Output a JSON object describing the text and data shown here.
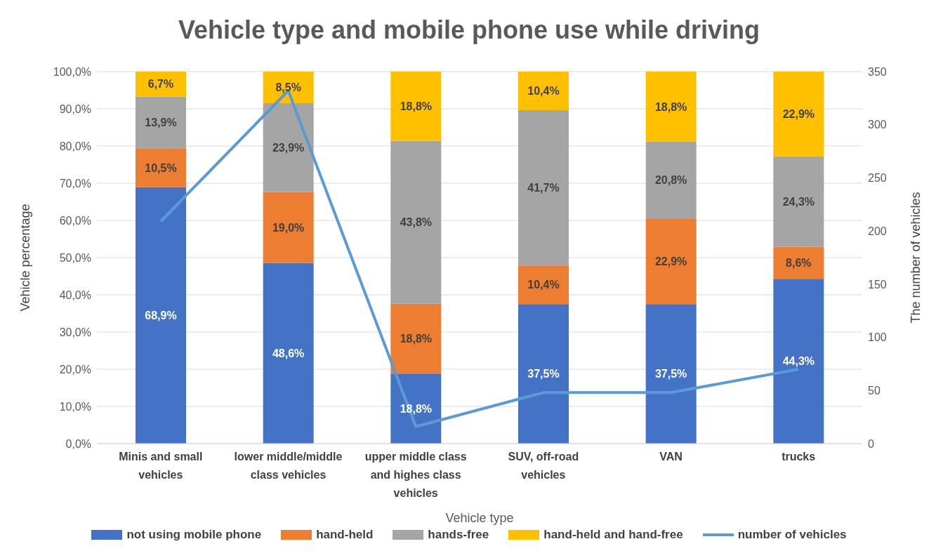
{
  "chart_data": {
    "type": "bar",
    "title": "Vehicle type and mobile phone use while driving",
    "xlabel": "Vehicle type",
    "ylabel": "Vehicle percentage",
    "y2label": "The number of vehicles",
    "categories": [
      "Minis and small vehicles",
      "lower middle/middle class vehicles",
      "upper middle class and highes class vehicles",
      "SUV, off-road vehicles",
      "VAN",
      "trucks"
    ],
    "stacked": true,
    "series": [
      {
        "name": "not using mobile phone",
        "color": "#4472c4",
        "values": [
          68.9,
          48.6,
          18.8,
          37.5,
          37.5,
          44.3
        ],
        "value_labels": [
          "68,9%",
          "48,6%",
          "18,8%",
          "37,5%",
          "37,5%",
          "44,3%"
        ]
      },
      {
        "name": "hand-held",
        "color": "#ed7d31",
        "values": [
          10.5,
          19.0,
          18.8,
          10.4,
          22.9,
          8.6
        ],
        "value_labels": [
          "10,5%",
          "19,0%",
          "18,8%",
          "10,4%",
          "22,9%",
          "8,6%"
        ]
      },
      {
        "name": "hands-free",
        "color": "#a5a5a5",
        "values": [
          13.9,
          23.9,
          43.8,
          41.7,
          20.8,
          24.3
        ],
        "value_labels": [
          "13,9%",
          "23,9%",
          "43,8%",
          "41,7%",
          "20,8%",
          "24,3%"
        ]
      },
      {
        "name": "hand-held and hand-free",
        "color": "#ffc000",
        "values": [
          6.7,
          8.5,
          18.8,
          10.4,
          18.8,
          22.9
        ],
        "value_labels": [
          "6,7%",
          "8,5%",
          "18,8%",
          "10,4%",
          "18,8%",
          "22,9%"
        ]
      },
      {
        "name": "number of vehicles",
        "type": "line",
        "axis": "y2",
        "color": "#5b9bd5",
        "values": [
          209,
          332,
          16,
          48,
          48,
          70
        ]
      }
    ],
    "ylim": [
      0,
      100
    ],
    "yticks": [
      {
        "value": 0,
        "label": "0,0%"
      },
      {
        "value": 10,
        "label": "10,0%"
      },
      {
        "value": 20,
        "label": "20,0%"
      },
      {
        "value": 30,
        "label": "30,0%"
      },
      {
        "value": 40,
        "label": "40,0%"
      },
      {
        "value": 50,
        "label": "50,0%"
      },
      {
        "value": 60,
        "label": "60,0%"
      },
      {
        "value": 70,
        "label": "70,0%"
      },
      {
        "value": 80,
        "label": "80,0%"
      },
      {
        "value": 90,
        "label": "90,0%"
      },
      {
        "value": 100,
        "label": "100,0%"
      }
    ],
    "y2lim": [
      0,
      350
    ],
    "y2ticks": [
      0,
      50,
      100,
      150,
      200,
      250,
      300,
      350
    ],
    "grid": "y",
    "legend": "bottom",
    "marker": "none"
  }
}
